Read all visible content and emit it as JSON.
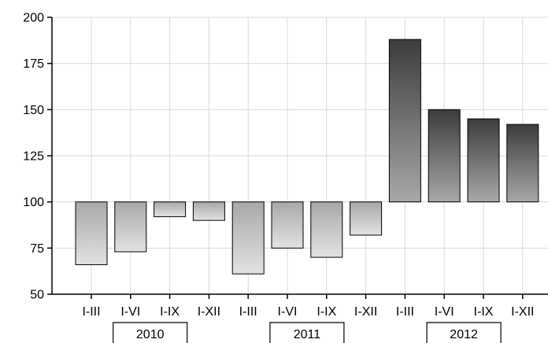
{
  "chart_data": {
    "type": "bar",
    "baseline": 100,
    "categories": [
      "I-III",
      "I-VI",
      "I-IX",
      "I-XII",
      "I-III",
      "I-VI",
      "I-IX",
      "I-XII",
      "I-III",
      "I-VI",
      "I-IX",
      "I-XII"
    ],
    "groups": [
      {
        "label": "2010",
        "start": 0,
        "end": 3
      },
      {
        "label": "2011",
        "start": 4,
        "end": 7
      },
      {
        "label": "2012",
        "start": 8,
        "end": 11
      }
    ],
    "values": [
      66,
      73,
      92,
      90,
      61,
      75,
      70,
      82,
      188,
      150,
      145,
      142
    ],
    "ylim": [
      50,
      200
    ],
    "yticks": [
      "50",
      "75",
      "100",
      "125",
      "150",
      "175",
      "200"
    ],
    "grid": true,
    "title": "",
    "xlabel": "",
    "ylabel": "",
    "colors": {
      "bar_light": "#e2e2e2",
      "bar_mid": "#a8a8a8",
      "bar_dark": "#3c3c3c",
      "edge": "#000000",
      "grid": "#d8d8d8"
    }
  }
}
